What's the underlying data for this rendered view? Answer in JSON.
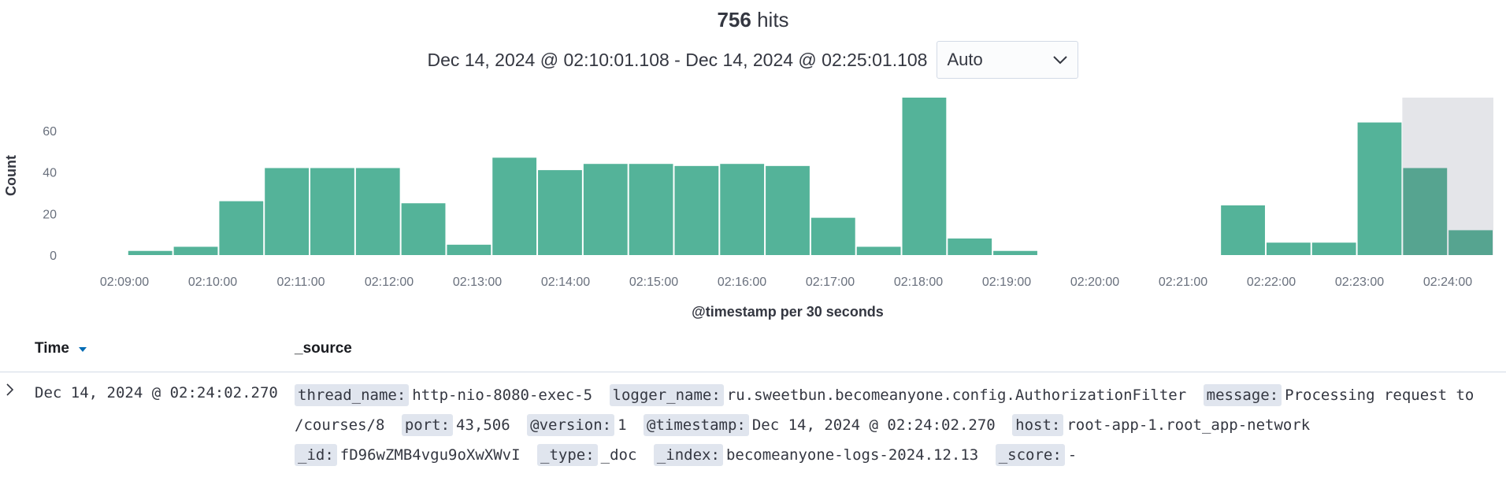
{
  "hits": {
    "count": "756",
    "label": "hits"
  },
  "time_range": "Dec 14, 2024 @ 02:10:01.108 - Dec 14, 2024 @ 02:25:01.108",
  "interval": {
    "selected": "Auto"
  },
  "chart_data": {
    "type": "bar",
    "ylabel": "Count",
    "xlabel": "@timestamp per 30 seconds",
    "y_ticks": [
      0,
      20,
      40,
      60
    ],
    "ylim": [
      0,
      76
    ],
    "grid": false,
    "x_ticks": [
      "02:09:00",
      "02:10:00",
      "02:11:00",
      "02:12:00",
      "02:13:00",
      "02:14:00",
      "02:15:00",
      "02:16:00",
      "02:17:00",
      "02:18:00",
      "02:19:00",
      "02:20:00",
      "02:21:00",
      "02:22:00",
      "02:23:00",
      "02:24:00"
    ],
    "categories": [
      "02:10:00",
      "02:10:30",
      "02:11:00",
      "02:11:30",
      "02:12:00",
      "02:12:30",
      "02:13:00",
      "02:13:30",
      "02:14:00",
      "02:14:30",
      "02:15:00",
      "02:15:30",
      "02:16:00",
      "02:16:30",
      "02:17:00",
      "02:17:30",
      "02:18:00",
      "02:18:30",
      "02:19:00",
      "02:19:30",
      "02:20:00",
      "02:20:30",
      "02:21:00",
      "02:21:30",
      "02:22:00",
      "02:22:30",
      "02:23:00",
      "02:23:30",
      "02:24:00",
      "02:24:30"
    ],
    "values": [
      2,
      4,
      26,
      42,
      42,
      42,
      25,
      5,
      47,
      41,
      44,
      44,
      43,
      44,
      43,
      18,
      4,
      76,
      8,
      2,
      0,
      0,
      0,
      0,
      24,
      6,
      6,
      64,
      42,
      12
    ],
    "bar_color": "#54b399",
    "partial_bucket_start": "02:24:00"
  },
  "table": {
    "headers": {
      "time": "Time",
      "source": "_source"
    },
    "rows": [
      {
        "time": "Dec 14, 2024 @ 02:24:02.270",
        "fields": [
          {
            "key": "thread_name:",
            "value": "http-nio-8080-exec-5"
          },
          {
            "key": "logger_name:",
            "value": "ru.sweetbun.becomeanyone.config.AuthorizationFilter"
          },
          {
            "key": "message:",
            "value": "Processing request to /courses/8"
          },
          {
            "key": "port:",
            "value": "43,506"
          },
          {
            "key": "@version:",
            "value": "1"
          },
          {
            "key": "@timestamp:",
            "value": "Dec 14, 2024 @ 02:24:02.270"
          },
          {
            "key": "host:",
            "value": "root-app-1.root_app-network"
          },
          {
            "key": "_id:",
            "value": "fD96wZMB4vgu9oXwXWvI"
          },
          {
            "key": "_type:",
            "value": "_doc"
          },
          {
            "key": "_index:",
            "value": "becomeanyone-logs-2024.12.13"
          },
          {
            "key": "_score:",
            "value": "-"
          }
        ]
      }
    ]
  }
}
